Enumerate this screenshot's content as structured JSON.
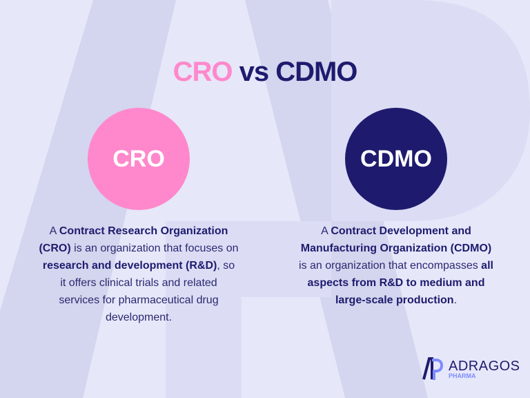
{
  "colors": {
    "background": "#e6e7f9",
    "pink": "#ff88cc",
    "navy": "#1e1b6e",
    "watermark": "#d4d5ee"
  },
  "title": {
    "part1": "CRO",
    "part2": " vs CDMO"
  },
  "cro": {
    "circle_label": "CRO",
    "segments": [
      {
        "text": "A ",
        "bold": false
      },
      {
        "text": "Contract Research Organization (CRO)",
        "bold": true
      },
      {
        "text": " is an organization that focuses on ",
        "bold": false
      },
      {
        "text": "research and development (R&D)",
        "bold": true
      },
      {
        "text": ", so it offers clinical trials and related services for pharmaceutical drug development.",
        "bold": false
      }
    ]
  },
  "cdmo": {
    "circle_label": "CDMO",
    "segments": [
      {
        "text": "A ",
        "bold": false
      },
      {
        "text": "Contract Development and Manufacturing Organization (CDMO)",
        "bold": true
      },
      {
        "text": " is an organization that encompasses ",
        "bold": false
      },
      {
        "text": "all aspects from R&D to medium and large-scale production",
        "bold": true
      },
      {
        "text": ".",
        "bold": false
      }
    ]
  },
  "logo": {
    "name": "ADRAGOS",
    "sub": "PHARMA",
    "icon": "adragos-logo-icon"
  }
}
